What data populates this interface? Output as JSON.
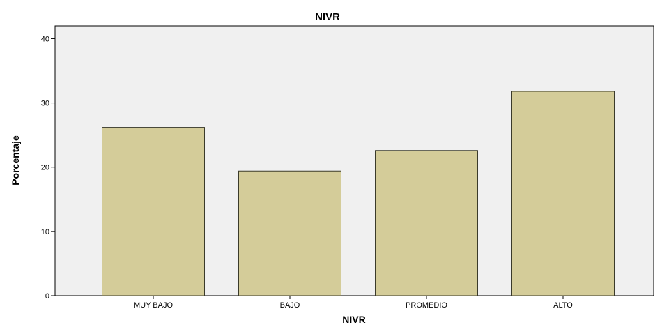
{
  "chart_data": {
    "type": "bar",
    "title": "NIVR",
    "xlabel": "NIVR",
    "ylabel": "Porcentaje",
    "categories": [
      "MUY BAJO",
      "BAJO",
      "PROMEDIO",
      "ALTO"
    ],
    "values": [
      26.2,
      19.4,
      22.6,
      31.8
    ],
    "ylim": [
      0,
      42
    ],
    "yticks": [
      0,
      10,
      20,
      30,
      40
    ],
    "grid": false,
    "legend": "none",
    "colors": {
      "bar_fill": "#d4cc99",
      "bar_stroke": "#3a3a2a",
      "plot_background": "#f0f0f0",
      "plot_border": "#000000"
    }
  }
}
